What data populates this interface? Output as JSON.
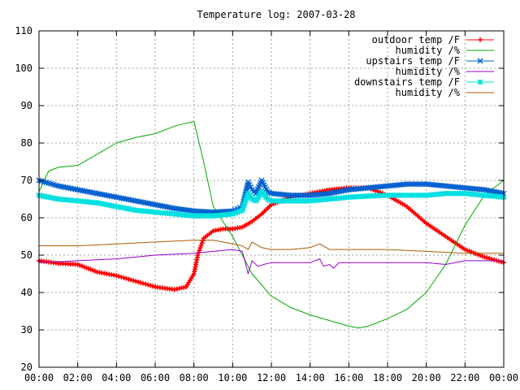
{
  "chart_data": {
    "type": "line",
    "title": "Temperature log: 2007-03-28",
    "xlabel": "",
    "ylabel": "",
    "x_unit": "hours",
    "xlim": [
      0,
      24
    ],
    "ylim": [
      20,
      110
    ],
    "grid": true,
    "legend_position": "top-right",
    "x_ticks": [
      0,
      2,
      4,
      6,
      8,
      10,
      12,
      14,
      16,
      18,
      20,
      22,
      24
    ],
    "x_tick_labels": [
      "00:00",
      "02:00",
      "04:00",
      "06:00",
      "08:00",
      "10:00",
      "12:00",
      "14:00",
      "16:00",
      "18:00",
      "20:00",
      "22:00",
      "00:00"
    ],
    "y_ticks": [
      20,
      30,
      40,
      50,
      60,
      70,
      80,
      90,
      100,
      110
    ],
    "y_tick_labels": [
      "20",
      "30",
      "40",
      "50",
      "60",
      "70",
      "80",
      "90",
      "100",
      "110"
    ],
    "series": [
      {
        "name": "outdoor temp /F",
        "color": "#ff0000",
        "marker": "plus",
        "x": [
          0,
          1,
          2,
          3,
          4,
          5,
          6,
          7,
          7.6,
          8,
          8.2,
          8.5,
          9,
          9.5,
          10,
          10.5,
          11,
          11.5,
          12,
          13,
          14,
          15,
          16,
          17,
          17.5,
          18,
          19,
          20,
          21,
          22,
          23,
          24
        ],
        "y": [
          48.5,
          47.8,
          47.5,
          45.5,
          44.5,
          43,
          41.5,
          40.8,
          41.5,
          45,
          50,
          54.5,
          56.5,
          57,
          57,
          57.5,
          59,
          61,
          63.5,
          65.5,
          66.5,
          67.5,
          68,
          68,
          67,
          66,
          63,
          58.5,
          55,
          51.5,
          49.5,
          48
        ]
      },
      {
        "name": "humidity /%",
        "color": "#00aa00",
        "marker": "none",
        "x": [
          0,
          0.5,
          1,
          2,
          3,
          4,
          5,
          6,
          7,
          8,
          8.5,
          9,
          10,
          11,
          12,
          13,
          14,
          15,
          16,
          16.5,
          17,
          18,
          19,
          20,
          21,
          22,
          23,
          24
        ],
        "y": [
          67,
          72.5,
          73.5,
          74,
          77,
          80,
          81.5,
          82.5,
          84.5,
          85.8,
          75,
          63,
          55,
          45,
          39,
          36,
          34,
          32.5,
          31,
          30.5,
          31,
          33,
          35.5,
          40,
          47.5,
          58,
          66,
          70
        ]
      },
      {
        "name": "upstairs temp /F",
        "color": "#0060d0",
        "marker": "cross",
        "x": [
          0,
          1,
          2,
          3,
          4,
          5,
          6,
          7,
          8,
          9,
          10,
          10.5,
          10.8,
          11,
          11.2,
          11.5,
          11.8,
          12,
          13,
          14,
          15,
          16,
          17,
          18,
          19,
          20,
          21,
          22,
          23,
          24
        ],
        "y": [
          70,
          68.5,
          67.5,
          66.5,
          65.5,
          64.5,
          63.5,
          62.5,
          61.8,
          61.5,
          61.8,
          63,
          69.5,
          67.5,
          66.5,
          70,
          67,
          66.5,
          66,
          66,
          66.5,
          67.5,
          68,
          68.5,
          69,
          69,
          68.5,
          68,
          67.5,
          66.5
        ]
      },
      {
        "name": "humidity /%",
        "color": "#9900cc",
        "marker": "none",
        "x": [
          0,
          2,
          4,
          6,
          8,
          9,
          10,
          10.5,
          10.8,
          11,
          11.3,
          11.6,
          12,
          13,
          14,
          14.5,
          14.7,
          15,
          15.2,
          15.5,
          16,
          18,
          20,
          21,
          22,
          23,
          24
        ],
        "y": [
          48,
          48.5,
          49,
          50,
          50.5,
          51,
          51.5,
          51,
          45,
          48.5,
          47,
          47.5,
          48,
          48,
          48,
          49,
          47,
          47.5,
          46.5,
          48,
          48,
          48,
          48,
          47.5,
          48.5,
          48.5,
          48.5
        ]
      },
      {
        "name": "downstairs temp /F",
        "color": "#00e0e0",
        "marker": "star",
        "x": [
          0,
          1,
          2,
          3,
          4,
          5,
          6,
          7,
          8,
          9,
          10,
          10.5,
          10.8,
          11,
          11.2,
          11.5,
          11.8,
          12,
          13,
          14,
          15,
          16,
          17,
          18,
          19,
          20,
          21,
          22,
          23,
          24
        ],
        "y": [
          66,
          65,
          64.5,
          64,
          63,
          62,
          61.5,
          61,
          60.5,
          60.5,
          61,
          62,
          66.5,
          65,
          64.5,
          67,
          65,
          64.5,
          64.5,
          64.5,
          65,
          65.5,
          65.8,
          66,
          66,
          66,
          66.5,
          66.5,
          66,
          65.5
        ]
      },
      {
        "name": "humidity /%",
        "color": "#b05a00",
        "marker": "none",
        "x": [
          0,
          2,
          4,
          6,
          8,
          9,
          10,
          10.5,
          10.8,
          11,
          11.5,
          12,
          13,
          14,
          14.5,
          15,
          16,
          18,
          20,
          22,
          24
        ],
        "y": [
          52.5,
          52.5,
          53,
          53.5,
          54,
          54,
          53,
          52.5,
          51.5,
          53.5,
          52,
          51.5,
          51.5,
          52,
          53,
          51.5,
          51.5,
          51.5,
          51,
          50.5,
          50.5
        ]
      }
    ]
  }
}
